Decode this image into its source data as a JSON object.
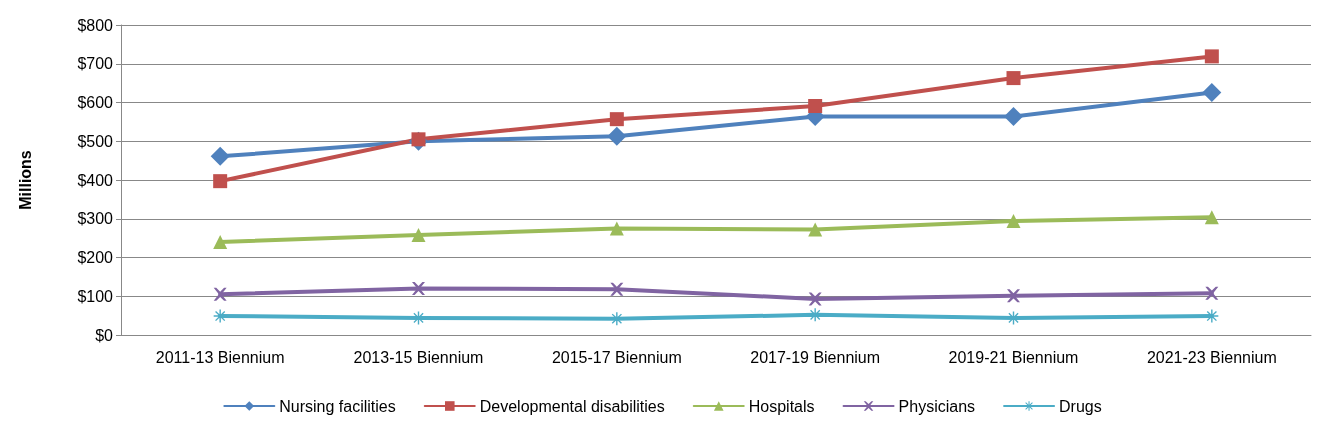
{
  "chart_data": {
    "type": "line",
    "ylabel": "Millions",
    "categories": [
      "2011-13 Biennium",
      "2013-15 Biennium",
      "2015-17 Biennium",
      "2017-19 Biennium",
      "2019-21 Biennium",
      "2021-23 Biennium"
    ],
    "series": [
      {
        "name": "Nursing facilities",
        "color": "#4f81bd",
        "marker": "diamond",
        "values": [
          461,
          500,
          513,
          564,
          564,
          626
        ]
      },
      {
        "name": "Developmental disabilities",
        "color": "#c0504d",
        "marker": "square",
        "values": [
          397,
          505,
          557,
          591,
          663,
          719
        ]
      },
      {
        "name": "Hospitals",
        "color": "#9bbb59",
        "marker": "triangle",
        "values": [
          240,
          258,
          275,
          272,
          294,
          304
        ]
      },
      {
        "name": "Physicians",
        "color": "#8064a2",
        "marker": "cross",
        "values": [
          105,
          120,
          118,
          93,
          101,
          108
        ]
      },
      {
        "name": "Drugs",
        "color": "#4bacc6",
        "marker": "star",
        "values": [
          49,
          44,
          42,
          52,
          44,
          49
        ]
      }
    ],
    "ylim": [
      0,
      800
    ],
    "yticks": [
      {
        "value": 0,
        "label": "$0"
      },
      {
        "value": 100,
        "label": "$100"
      },
      {
        "value": 200,
        "label": "$200"
      },
      {
        "value": 300,
        "label": "$300"
      },
      {
        "value": 400,
        "label": "$400"
      },
      {
        "value": 500,
        "label": "$500"
      },
      {
        "value": 600,
        "label": "$600"
      },
      {
        "value": 700,
        "label": "$700"
      },
      {
        "value": 800,
        "label": "$800"
      }
    ],
    "grid": "y",
    "legend": "bottom",
    "line_style": "solid"
  }
}
